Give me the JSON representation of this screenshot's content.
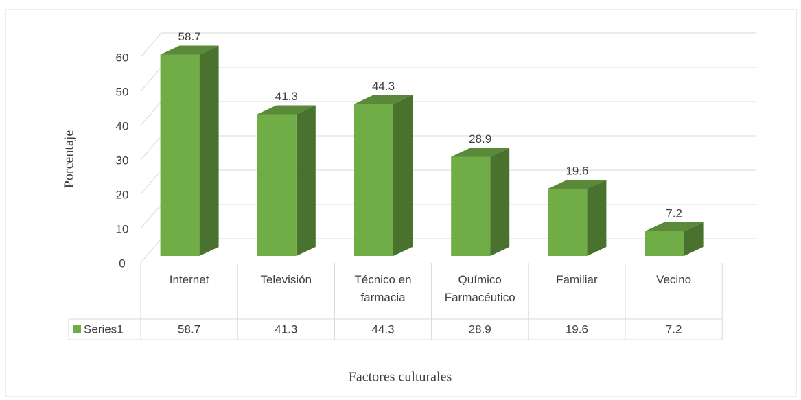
{
  "chart_data": {
    "type": "bar3d",
    "y_axis_label": "Porcentaje",
    "x_axis_label": "Factores culturales",
    "categories": [
      "Internet",
      "Televisión",
      "Técnico en farmacia",
      "Químico Farmacéutico",
      "Familiar",
      "Vecino"
    ],
    "series": [
      {
        "name": "Series1",
        "color": "#70ad47",
        "values": [
          58.7,
          41.3,
          44.3,
          28.9,
          19.6,
          7.2
        ]
      }
    ],
    "ylim": [
      0,
      60
    ],
    "yticks": [
      0,
      10,
      20,
      30,
      40,
      50,
      60
    ],
    "grid": true,
    "data_labels": true,
    "data_table": true
  }
}
